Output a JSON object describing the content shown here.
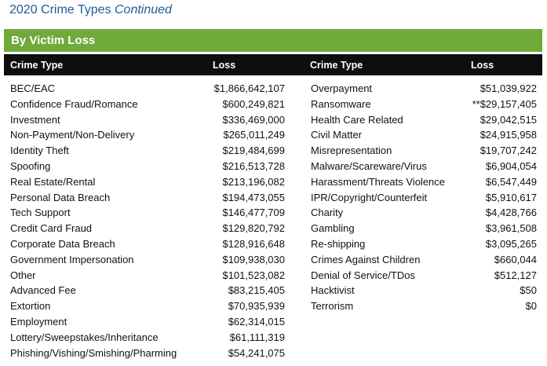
{
  "title": {
    "main": "2020 Crime Types ",
    "italic": "Continued"
  },
  "banner": "By Victim Loss",
  "headers": {
    "type_left": "Crime Type",
    "loss_left": "Loss",
    "type_right": "Crime Type",
    "loss_right": "Loss"
  },
  "left_rows": [
    {
      "type": "BEC/EAC",
      "loss": "$1,866,642,107"
    },
    {
      "type": "Confidence Fraud/Romance",
      "loss": "$600,249,821"
    },
    {
      "type": "Investment",
      "loss": "$336,469,000"
    },
    {
      "type": "Non-Payment/Non-Delivery",
      "loss": "$265,011,249"
    },
    {
      "type": "Identity Theft",
      "loss": "$219,484,699"
    },
    {
      "type": "Spoofing",
      "loss": "$216,513,728"
    },
    {
      "type": "Real Estate/Rental",
      "loss": "$213,196,082"
    },
    {
      "type": "Personal Data Breach",
      "loss": "$194,473,055"
    },
    {
      "type": "Tech Support",
      "loss": "$146,477,709"
    },
    {
      "type": "Credit Card Fraud",
      "loss": "$129,820,792"
    },
    {
      "type": "Corporate Data Breach",
      "loss": "$128,916,648"
    },
    {
      "type": "Government Impersonation",
      "loss": "$109,938,030"
    },
    {
      "type": "Other",
      "loss": "$101,523,082"
    },
    {
      "type": "Advanced Fee",
      "loss": "$83,215,405"
    },
    {
      "type": "Extortion",
      "loss": "$70,935,939"
    },
    {
      "type": "Employment",
      "loss": "$62,314,015"
    },
    {
      "type": "Lottery/Sweepstakes/Inheritance",
      "loss": "$61,111,319"
    },
    {
      "type": "Phishing/Vishing/Smishing/Pharming",
      "loss": "$54,241,075"
    }
  ],
  "right_rows": [
    {
      "type": "Overpayment",
      "loss": "$51,039,922"
    },
    {
      "type": "Ransomware",
      "loss": "**$29,157,405"
    },
    {
      "type": "Health Care Related",
      "loss": "$29,042,515"
    },
    {
      "type": "Civil Matter",
      "loss": "$24,915,958"
    },
    {
      "type": "Misrepresentation",
      "loss": "$19,707,242"
    },
    {
      "type": "Malware/Scareware/Virus",
      "loss": "$6,904,054"
    },
    {
      "type": "Harassment/Threats Violence",
      "loss": "$6,547,449"
    },
    {
      "type": "IPR/Copyright/Counterfeit",
      "loss": "$5,910,617"
    },
    {
      "type": "Charity",
      "loss": "$4,428,766"
    },
    {
      "type": "Gambling",
      "loss": "$3,961,508"
    },
    {
      "type": "Re-shipping",
      "loss": "$3,095,265"
    },
    {
      "type": "Crimes Against Children",
      "loss": "$660,044"
    },
    {
      "type": "Denial of Service/TDos",
      "loss": "$512,127"
    },
    {
      "type": "Hacktivist",
      "loss": "$50"
    },
    {
      "type": "Terrorism",
      "loss": "$0"
    }
  ],
  "colors": {
    "title": "#1f5a96",
    "banner": "#6faa3a",
    "header": "#0e0e0e"
  }
}
